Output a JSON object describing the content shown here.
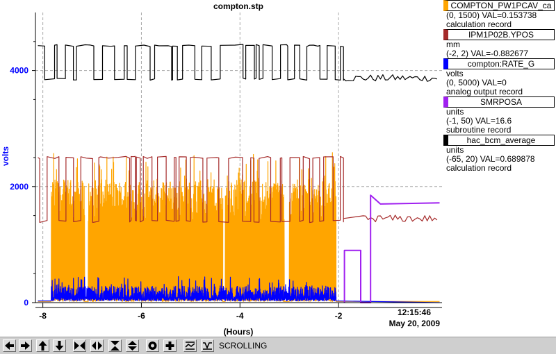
{
  "chart_data": {
    "type": "line",
    "title": "compton.stp",
    "xlabel": "(Hours)",
    "ylabel": "volts",
    "xlim": [
      -8.15,
      0.1
    ],
    "ylim": [
      0,
      5000
    ],
    "xticks": [
      -8,
      -6,
      -4,
      -2
    ],
    "yticks": [
      0,
      2000,
      4000
    ],
    "timestamp_time": "12:15:46",
    "timestamp_date": "May 20, 2009",
    "grid": true,
    "series": [
      {
        "name": "COMPTON_PW1PCAV_ca",
        "color": "#ffa500",
        "range": "(0, 1500)",
        "val": "VAL=0.153738",
        "units": "",
        "record": "calculation record",
        "shape": "dense-noise",
        "segments": [
          [
            -7.83,
            -7.15
          ],
          [
            -7.08,
            -4.35
          ],
          [
            -4.3,
            -3.1
          ],
          [
            -3.0,
            -2.05
          ]
        ],
        "band": [
          1400,
          2600
        ],
        "base": 20,
        "tail": 20
      },
      {
        "name": "IPM1P02B.YPOS",
        "color": "#a52a2a",
        "range": "(-2, 2)",
        "val": "VAL=-0.882677",
        "units": "mm",
        "record": "",
        "shape": "step-telegraph",
        "low": 1400,
        "high": 2500,
        "end_x": -1.9,
        "tail_level": 1450,
        "tail_start": -1.5
      },
      {
        "name": "compton:RATE_G",
        "color": "#0000ff",
        "range": "(0, 5000)",
        "val": "VAL=0",
        "units": "volts",
        "record": "analog output record",
        "shape": "dense-noise",
        "segments": [
          [
            -7.83,
            -2.05
          ]
        ],
        "band": [
          30,
          450
        ],
        "base": 30,
        "tail": 0
      },
      {
        "name": "SMRPOSA",
        "color": "#a020f0",
        "range": "(-1, 50)",
        "val": "VAL=16.6",
        "units": "units",
        "record": "subroutine record",
        "shape": "late-steps",
        "points": [
          [
            -1.88,
            0
          ],
          [
            -1.88,
            900
          ],
          [
            -1.55,
            900
          ],
          [
            -1.55,
            0
          ],
          [
            -1.35,
            0
          ],
          [
            -1.35,
            1850
          ],
          [
            -1.15,
            1700
          ],
          [
            0.05,
            1720
          ]
        ]
      },
      {
        "name": "hac_bcm_average",
        "color": "#000000",
        "range": "(-65, 20)",
        "val": "VAL=0.689878",
        "units": "units",
        "record": "calculation record",
        "shape": "step-telegraph",
        "low": 3850,
        "high": 4430,
        "end_x": -1.9,
        "tail_level": 3870,
        "tail_start": -1.9
      }
    ]
  },
  "toolbar": {
    "status_text": "SCROLLING",
    "buttons": [
      "pan-left-icon",
      "pan-right-icon",
      "pan-up-icon",
      "pan-down-icon",
      "zoom-in-x-icon",
      "zoom-out-x-icon",
      "zoom-in-y-icon",
      "zoom-out-y-icon",
      "stop-icon",
      "crosshair-icon",
      "auto-scale-icon",
      "scroll-mode-icon"
    ]
  }
}
